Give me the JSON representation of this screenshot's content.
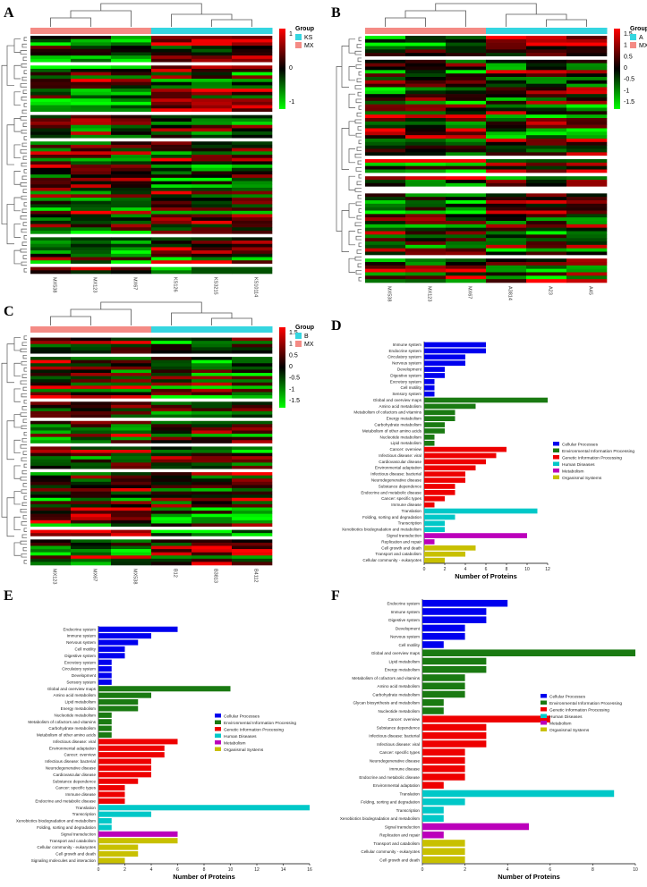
{
  "panels": {
    "A": "A",
    "B": "B",
    "C": "C",
    "D": "D",
    "E": "E",
    "F": "F"
  },
  "colors": {
    "cellular": "#0000ee",
    "environmental": "#1a7a12",
    "genetic": "#ee0000",
    "human": "#00c8c8",
    "metabolism": "#bb00bb",
    "organismal": "#c8c000",
    "heat_high": "#ff0000",
    "heat_mid": "#000000",
    "heat_low": "#00ff00",
    "group_cyan": "#35d6e0",
    "group_salmon": "#f48b85"
  },
  "chart_data": [
    {
      "panel": "A",
      "type": "heatmap",
      "columns": [
        "MX538",
        "MX123",
        "MX67",
        "KS126",
        "KS3215",
        "KS10114"
      ],
      "column_groups": [
        "MX",
        "MX",
        "MX",
        "KS",
        "KS",
        "KS"
      ],
      "legend_title": "Group",
      "legend_groups": [
        "KS",
        "MX"
      ],
      "colorbar_ticks": [
        "1",
        "0",
        "-1"
      ]
    },
    {
      "panel": "B",
      "type": "heatmap",
      "columns": [
        "MX538",
        "MX123",
        "MX67",
        "A3814",
        "A23",
        "A45"
      ],
      "column_groups": [
        "MX",
        "MX",
        "MX",
        "A",
        "A",
        "A"
      ],
      "legend_title": "Group",
      "legend_groups": [
        "A",
        "MX"
      ],
      "colorbar_ticks": [
        "1.5",
        "1",
        "0.5",
        "0",
        "-0.5",
        "-1",
        "-1.5"
      ]
    },
    {
      "panel": "C",
      "type": "heatmap",
      "columns": [
        "MX123",
        "MX67",
        "MX538",
        "B12",
        "B3813",
        "B4112"
      ],
      "column_groups": [
        "MX",
        "MX",
        "MX",
        "B",
        "B",
        "B"
      ],
      "legend_title": "Group",
      "legend_groups": [
        "B",
        "MX"
      ],
      "colorbar_ticks": [
        "1.5",
        "1",
        "0.5",
        "0",
        "-0.5",
        "-1",
        "-1.5"
      ]
    },
    {
      "panel": "D",
      "type": "bar",
      "orientation": "horizontal",
      "xlabel": "Number of Proteins",
      "xlim": [
        0,
        12
      ],
      "xticks": [
        0,
        2,
        4,
        6,
        8,
        10,
        12
      ],
      "legend": [
        "Cellular Processes",
        "Environmental Information Processing",
        "Genetic Information Processing",
        "Human Diseases",
        "Metabolism",
        "Organismal Systems"
      ],
      "categories": [
        "Immune system",
        "Endocrine system",
        "Circulatory system",
        "Nervous system",
        "Development",
        "Digestive system",
        "Excretory system",
        "Cell motility",
        "Sensory system",
        "Global and overview maps",
        "Amino acid metabolism",
        "Metabolism of cofactors and vitamins",
        "Energy metabolism",
        "Carbohydrate metabolism",
        "Metabolism of other amino acids",
        "Nucleotide metabolism",
        "Lipid metabolism",
        "Cancer: overview",
        "Infectious disease: viral",
        "Cardiovascular disease",
        "Environmental adaptation",
        "Infectious disease: bacterial",
        "Neurodegenerative disease",
        "Substance dependence",
        "Endocrine and metabolic disease",
        "Cancer: specific types",
        "Immune disease",
        "Translation",
        "Folding, sorting and degradation",
        "Transcription",
        "Xenobiotics biodegradation and metabolism",
        "Signal transduction",
        "Replication and repair",
        "Cell growth and death",
        "Transport and catabolism",
        "Cellular community - eukaryotes"
      ],
      "values": [
        6,
        6,
        4,
        4,
        2,
        2,
        1,
        1,
        1,
        12,
        5,
        3,
        3,
        2,
        2,
        1,
        1,
        8,
        7,
        6,
        5,
        4,
        4,
        3,
        3,
        2,
        1,
        11,
        3,
        2,
        2,
        10,
        1,
        5,
        4,
        2
      ],
      "groups": [
        0,
        0,
        0,
        0,
        0,
        0,
        0,
        0,
        0,
        1,
        1,
        1,
        1,
        1,
        1,
        1,
        1,
        2,
        2,
        2,
        2,
        2,
        2,
        2,
        2,
        2,
        2,
        3,
        3,
        3,
        3,
        4,
        4,
        5,
        5,
        5
      ]
    },
    {
      "panel": "E",
      "type": "bar",
      "orientation": "horizontal",
      "xlabel": "Number of Proteins",
      "xlim": [
        0,
        16
      ],
      "xticks": [
        0,
        2,
        4,
        6,
        8,
        10,
        12,
        14,
        16
      ],
      "legend": [
        "Cellular Processes",
        "Environmental Information Processing",
        "Genetic Information Processing",
        "Human Diseases",
        "Metabolism",
        "Organismal Systems"
      ],
      "categories": [
        "Endocrine system",
        "Immune system",
        "Nervous system",
        "Cell motility",
        "Digestive system",
        "Excretory system",
        "Circulatory system",
        "Development",
        "Sensory system",
        "Global and overview maps",
        "Amino acid metabolism",
        "Lipid metabolism",
        "Energy metabolism",
        "Nucleotide metabolism",
        "Metabolism of cofactors and vitamins",
        "Carbohydrate metabolism",
        "Metabolism of other amino acids",
        "Infectious disease: viral",
        "Environmental adaptation",
        "Cancer: overview",
        "Infectious disease: bacterial",
        "Neurodegenerative disease",
        "Cardiovascular disease",
        "Substance dependence",
        "Cancer: specific types",
        "Immune disease",
        "Endocrine and metabolic disease",
        "Translation",
        "Transcription",
        "Xenobiotics biodegradation and metabolism",
        "Folding, sorting and degradation",
        "Signal transduction",
        "Transport and catabolism",
        "Cellular community - eukaryotes",
        "Cell growth and death",
        "Signaling molecules and interaction"
      ],
      "values": [
        6,
        4,
        3,
        2,
        2,
        1,
        1,
        1,
        1,
        10,
        4,
        3,
        3,
        1,
        1,
        1,
        1,
        6,
        5,
        5,
        4,
        4,
        4,
        3,
        2,
        2,
        2,
        16,
        4,
        1,
        1,
        6,
        6,
        3,
        3,
        2
      ],
      "groups": [
        0,
        0,
        0,
        0,
        0,
        0,
        0,
        0,
        0,
        1,
        1,
        1,
        1,
        1,
        1,
        1,
        1,
        2,
        2,
        2,
        2,
        2,
        2,
        2,
        2,
        2,
        2,
        3,
        3,
        3,
        3,
        4,
        5,
        5,
        5,
        5
      ]
    },
    {
      "panel": "F",
      "type": "bar",
      "orientation": "horizontal",
      "xlabel": "Number of Proteins",
      "xlim": [
        0,
        10
      ],
      "xticks": [
        0,
        2,
        4,
        6,
        8,
        10
      ],
      "legend": [
        "Cellular Processes",
        "Environmental Information Processing",
        "Genetic Information Processing",
        "Human Diseases",
        "Metabolism",
        "Organismal Systems"
      ],
      "categories": [
        "Endocrine system",
        "Immune system",
        "Digestive system",
        "Development",
        "Nervous system",
        "Cell motility",
        "Global and overview maps",
        "Lipid metabolism",
        "Energy metabolism",
        "Metabolism of cofactors and vitamins",
        "Amino acid metabolism",
        "Carbohydrate metabolism",
        "Glycan biosynthesis and metabolism",
        "Nucleotide metabolism",
        "Cancer: overview",
        "Substance dependence",
        "Infectious disease: bacterial",
        "Infectious disease: viral",
        "Cancer: specific types",
        "Neurodegenerative disease",
        "Immune disease",
        "Endocrine and metabolic disease",
        "Environmental adaptation",
        "Translation",
        "Folding, sorting and degradation",
        "Transcription",
        "Xenobiotics biodegradation and metabolism",
        "Signal transduction",
        "Replication and repair",
        "Transport and catabolism",
        "Cellular community - eukaryotes",
        "Cell growth and death"
      ],
      "values": [
        4,
        3,
        3,
        2,
        2,
        1,
        10,
        3,
        3,
        2,
        2,
        2,
        1,
        1,
        6,
        3,
        3,
        3,
        2,
        2,
        2,
        2,
        1,
        9,
        2,
        1,
        1,
        5,
        1,
        2,
        2,
        2
      ],
      "groups": [
        0,
        0,
        0,
        0,
        0,
        0,
        1,
        1,
        1,
        1,
        1,
        1,
        1,
        1,
        2,
        2,
        2,
        2,
        2,
        2,
        2,
        2,
        2,
        3,
        3,
        3,
        3,
        4,
        4,
        5,
        5,
        5
      ]
    }
  ]
}
